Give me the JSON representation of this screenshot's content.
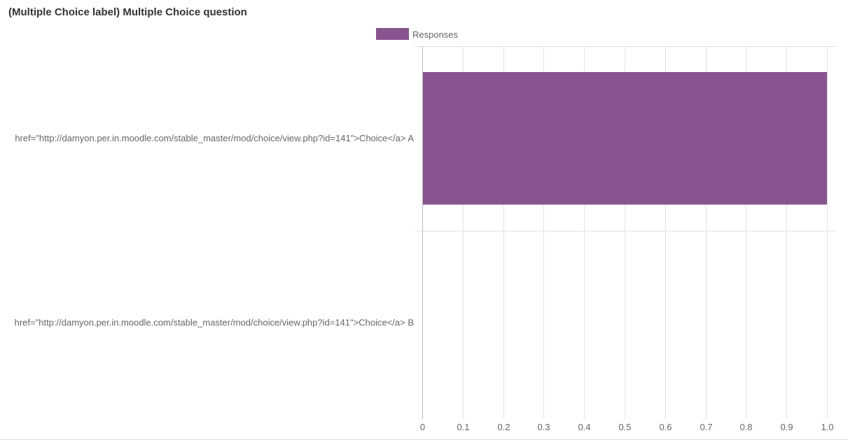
{
  "chart_data": {
    "type": "bar",
    "orientation": "horizontal",
    "title": "(Multiple Choice label) Multiple Choice question",
    "categories": [
      "href=\"http://damyon.per.in.moodle.com/stable_master/mod/choice/view.php?id=141\">Choice</a> A",
      "href=\"http://damyon.per.in.moodle.com/stable_master/mod/choice/view.php?id=141\">Choice</a> B"
    ],
    "series": [
      {
        "name": "Responses",
        "values": [
          1,
          0
        ],
        "color": "#88548f"
      }
    ],
    "xlim": [
      0,
      1
    ],
    "xticks": [
      "0",
      "0.1",
      "0.2",
      "0.3",
      "0.4",
      "0.5",
      "0.6",
      "0.7",
      "0.8",
      "0.9",
      "1.0"
    ],
    "grid": true,
    "legend": "top-center",
    "xlabel": "",
    "ylabel": ""
  }
}
